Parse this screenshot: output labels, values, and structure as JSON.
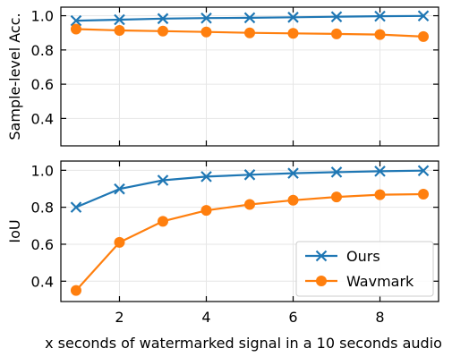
{
  "chart_data": [
    {
      "type": "line",
      "ylabel": "Sample-level Acc.",
      "xlim": [
        0.65,
        9.35
      ],
      "ylim": [
        0.24,
        1.05
      ],
      "yticks": [
        0.4,
        0.6,
        0.8,
        1.0
      ],
      "ytick_labels": [
        "0.4",
        "0.6",
        "0.8",
        "1.0"
      ],
      "xticks": [
        2,
        4,
        6,
        8
      ],
      "show_x_tick_labels": false,
      "grid": true,
      "series": [
        {
          "name": "Ours",
          "color": "#1f77b4",
          "marker": "x",
          "x": [
            1,
            2,
            3,
            4,
            5,
            6,
            7,
            8,
            9
          ],
          "y": [
            0.971,
            0.977,
            0.983,
            0.986,
            0.988,
            0.991,
            0.994,
            0.997,
            0.999
          ]
        },
        {
          "name": "Wavmark",
          "color": "#ff7f0e",
          "marker": "circle",
          "x": [
            1,
            2,
            3,
            4,
            5,
            6,
            7,
            8,
            9
          ],
          "y": [
            0.922,
            0.914,
            0.91,
            0.905,
            0.9,
            0.897,
            0.894,
            0.89,
            0.878
          ]
        }
      ]
    },
    {
      "type": "line",
      "ylabel": "IoU",
      "xlabel": "x seconds of watermarked signal in a 10 seconds audio",
      "xlim": [
        0.65,
        9.35
      ],
      "ylim": [
        0.29,
        1.05
      ],
      "yticks": [
        0.4,
        0.6,
        0.8,
        1.0
      ],
      "ytick_labels": [
        "0.4",
        "0.6",
        "0.8",
        "1.0"
      ],
      "xticks": [
        2,
        4,
        6,
        8
      ],
      "xtick_labels": [
        "2",
        "4",
        "6",
        "8"
      ],
      "show_x_tick_labels": true,
      "grid": true,
      "legend": "lower-right",
      "series": [
        {
          "name": "Ours",
          "color": "#1f77b4",
          "marker": "x",
          "x": [
            1,
            2,
            3,
            4,
            5,
            6,
            7,
            8,
            9
          ],
          "y": [
            0.8,
            0.899,
            0.946,
            0.966,
            0.976,
            0.984,
            0.99,
            0.995,
            0.998
          ]
        },
        {
          "name": "Wavmark",
          "color": "#ff7f0e",
          "marker": "circle",
          "x": [
            1,
            2,
            3,
            4,
            5,
            6,
            7,
            8,
            9
          ],
          "y": [
            0.35,
            0.61,
            0.724,
            0.783,
            0.815,
            0.838,
            0.856,
            0.868,
            0.871
          ]
        }
      ]
    }
  ]
}
